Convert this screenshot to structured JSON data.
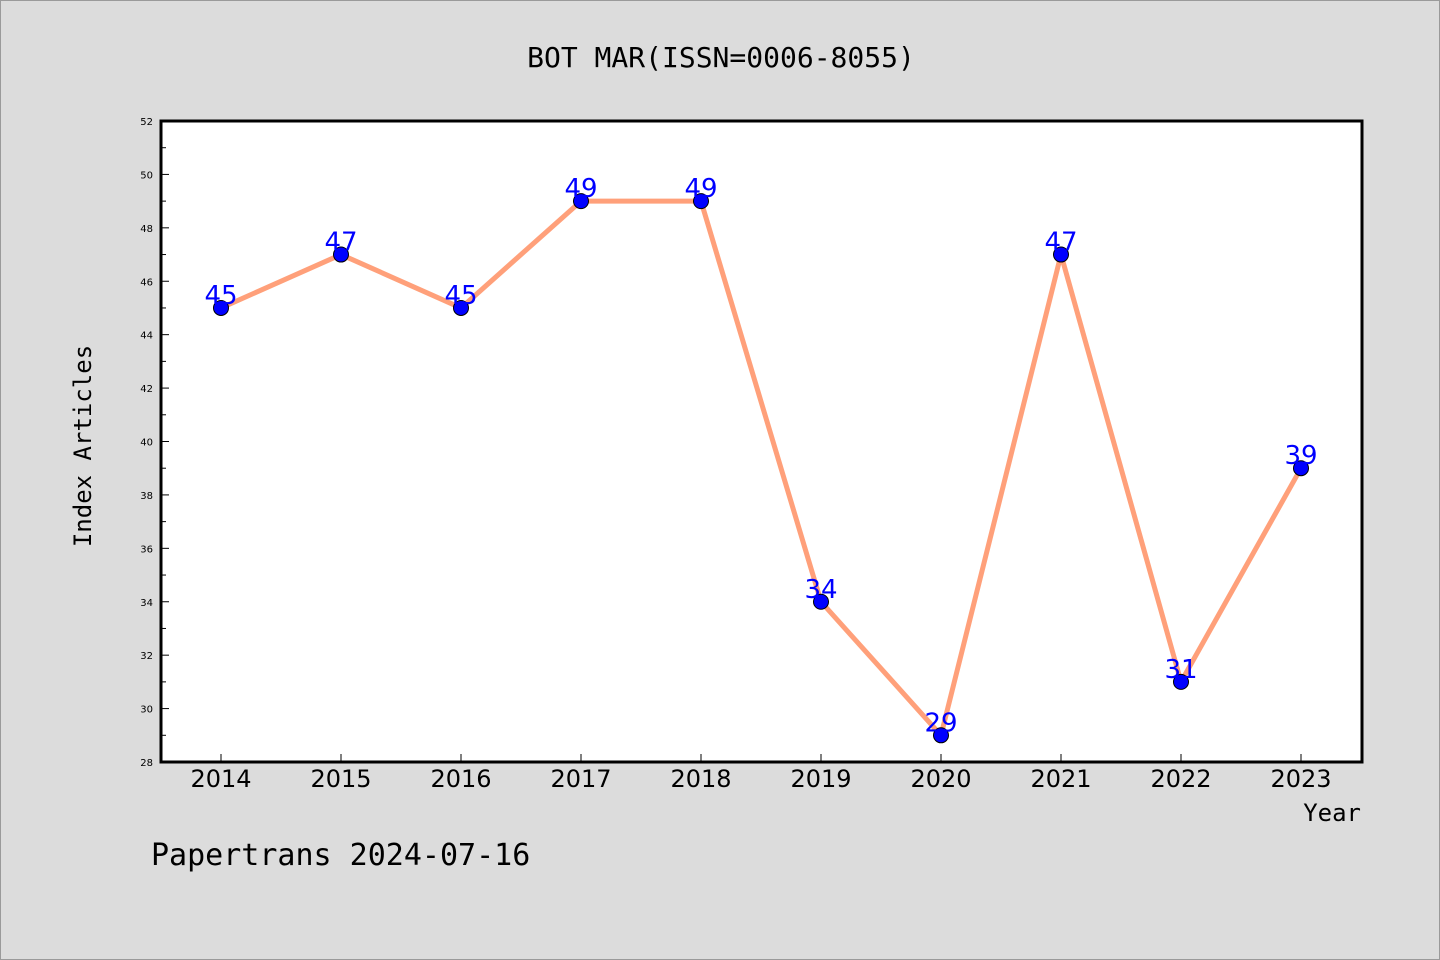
{
  "chart_data": {
    "type": "line",
    "title": "BOT MAR(ISSN=0006-8055)",
    "xlabel": "Year",
    "ylabel": "Index Articles",
    "categories": [
      "2014",
      "2015",
      "2016",
      "2017",
      "2018",
      "2019",
      "2020",
      "2021",
      "2022",
      "2023"
    ],
    "values": [
      45,
      47,
      45,
      49,
      49,
      34,
      29,
      47,
      31,
      39
    ],
    "data_labels": [
      "45",
      "47",
      "45",
      "49",
      "49",
      "34",
      "29",
      "47",
      "31",
      "39"
    ],
    "ylim": [
      28,
      52
    ],
    "yticks": [
      "28",
      "30",
      "32",
      "34",
      "36",
      "38",
      "40",
      "42",
      "44",
      "46",
      "48",
      "50",
      "52"
    ],
    "grid": false,
    "legend": "none",
    "colors": {
      "line": "#ffa07a",
      "marker": "#0000ff",
      "data_label": "#0000ff",
      "background": "#dcdcdc",
      "plot_background": "#ffffff"
    }
  },
  "footer": "Papertrans 2024-07-16"
}
